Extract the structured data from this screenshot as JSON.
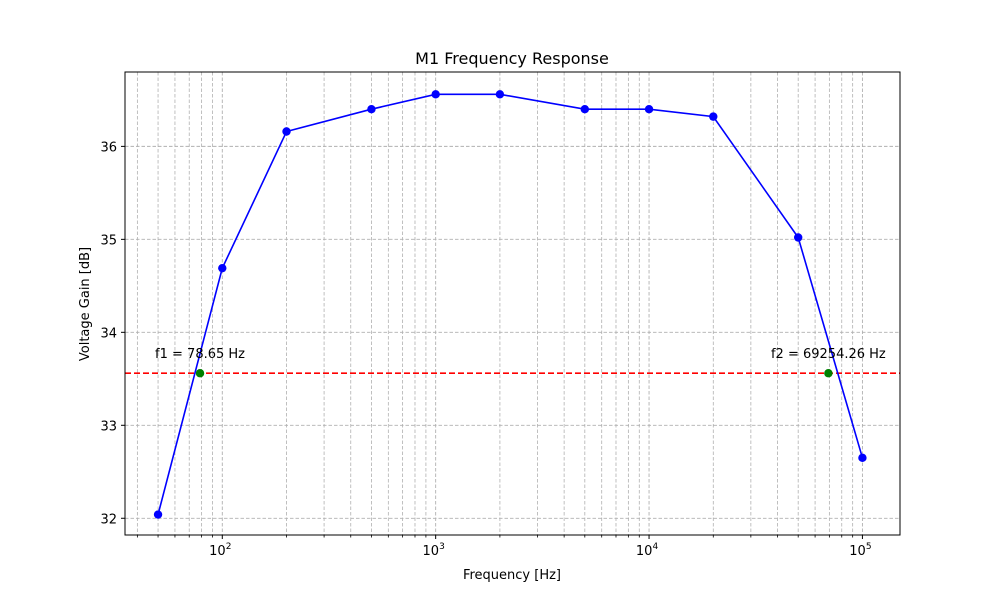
{
  "chart_data": {
    "type": "line",
    "title": "M1 Frequency Response",
    "xlabel": "Frequency [Hz]",
    "ylabel": "Voltage Gain [dB]",
    "x_scale": "log",
    "xlim": [
      35,
      150000
    ],
    "ylim": [
      31.82,
      36.8
    ],
    "grid": "both (major and minor, dashed)",
    "x_ticks": [
      {
        "base": "10",
        "exp": "2",
        "value": 100
      },
      {
        "base": "10",
        "exp": "3",
        "value": 1000
      },
      {
        "base": "10",
        "exp": "4",
        "value": 10000
      },
      {
        "base": "10",
        "exp": "5",
        "value": 100000
      }
    ],
    "y_ticks": [
      {
        "label": "32",
        "value": 32
      },
      {
        "label": "33",
        "value": 33
      },
      {
        "label": "34",
        "value": 34
      },
      {
        "label": "35",
        "value": 35
      },
      {
        "label": "36",
        "value": 36
      }
    ],
    "series": [
      {
        "color": "#0000ff",
        "marker": "circle",
        "x": [
          50,
          100,
          200,
          500,
          1000,
          2000,
          5000,
          10000,
          20000,
          50000,
          100000
        ],
        "y": [
          32.04,
          34.69,
          36.16,
          36.4,
          36.56,
          36.56,
          36.4,
          36.4,
          36.32,
          35.02,
          32.65
        ]
      }
    ],
    "reference_line": {
      "y": 33.56,
      "color": "#ff0000",
      "style": "dashed"
    },
    "cutoff_points": [
      {
        "x": 78.65,
        "y": 33.56,
        "color": "#008000",
        "label": "f1 = 78.65 Hz"
      },
      {
        "x": 69254.26,
        "y": 33.56,
        "color": "#008000",
        "label": "f2 = 69254.26 Hz"
      }
    ]
  }
}
